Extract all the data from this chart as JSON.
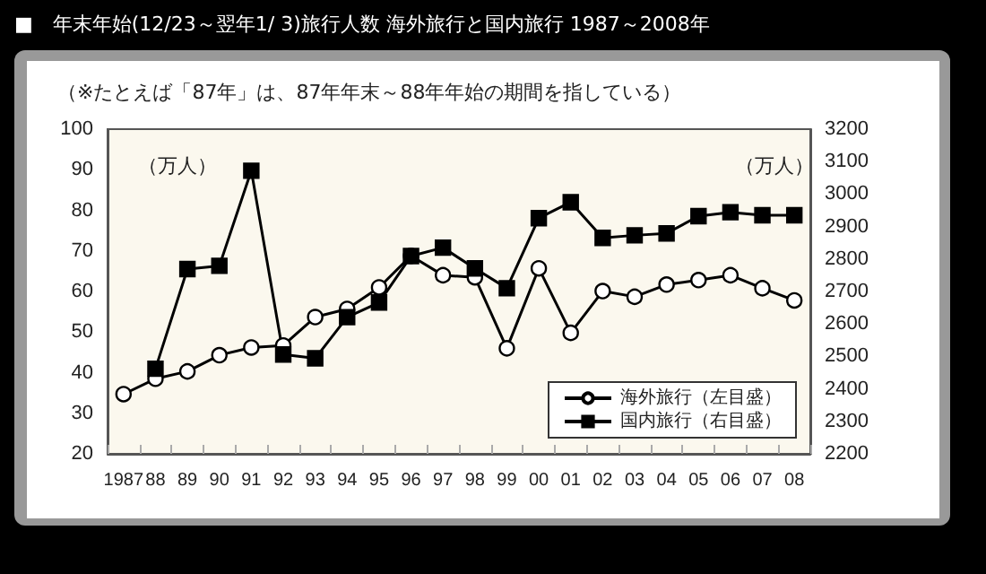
{
  "chart_data": {
    "type": "line",
    "title": "■　年末年始(12/23～翌年1/ 3)旅行人数 海外旅行と国内旅行 1987～2008年",
    "subtitle": "（※たとえば「87年」は、87年年末～88年年始の期間を指している）",
    "annotations": [
      "（万人）",
      "（万人）"
    ],
    "categories": [
      "1987",
      "88",
      "89",
      "90",
      "91",
      "92",
      "93",
      "94",
      "95",
      "96",
      "97",
      "98",
      "99",
      "00",
      "01",
      "02",
      "03",
      "04",
      "05",
      "06",
      "07",
      "08"
    ],
    "series": [
      {
        "name": "海外旅行（左目盛）",
        "color": "#000000",
        "marker": "circle",
        "values": [
          34.7,
          38.5,
          40.3,
          44.3,
          46.2,
          46.7,
          53.7,
          55.7,
          61,
          68.8,
          64,
          63.5,
          46,
          65.7,
          49.8,
          60.1,
          58.7,
          61.7,
          62.8,
          64,
          60.8,
          57.8
        ]
      },
      {
        "name": "国内旅行（右目盛）",
        "color": "#000000",
        "marker": "square",
        "axis": "y2",
        "values": [
          null,
          2462,
          2769,
          2779,
          3072,
          2506,
          2494,
          2621,
          2666,
          2809,
          2835,
          2771,
          2710,
          2926,
          2975,
          2865,
          2873,
          2879,
          2932,
          2944,
          2935,
          2935
        ]
      }
    ],
    "ylim": [
      20,
      100
    ],
    "yticks": [
      20,
      30,
      40,
      50,
      60,
      70,
      80,
      90,
      100
    ],
    "y2lim": [
      2200,
      3200
    ],
    "y2ticks": [
      2200,
      2300,
      2400,
      2500,
      2600,
      2700,
      2800,
      2900,
      3000,
      3100,
      3200
    ],
    "legend": "bottom right",
    "grid": false,
    "line_style": "solid"
  }
}
